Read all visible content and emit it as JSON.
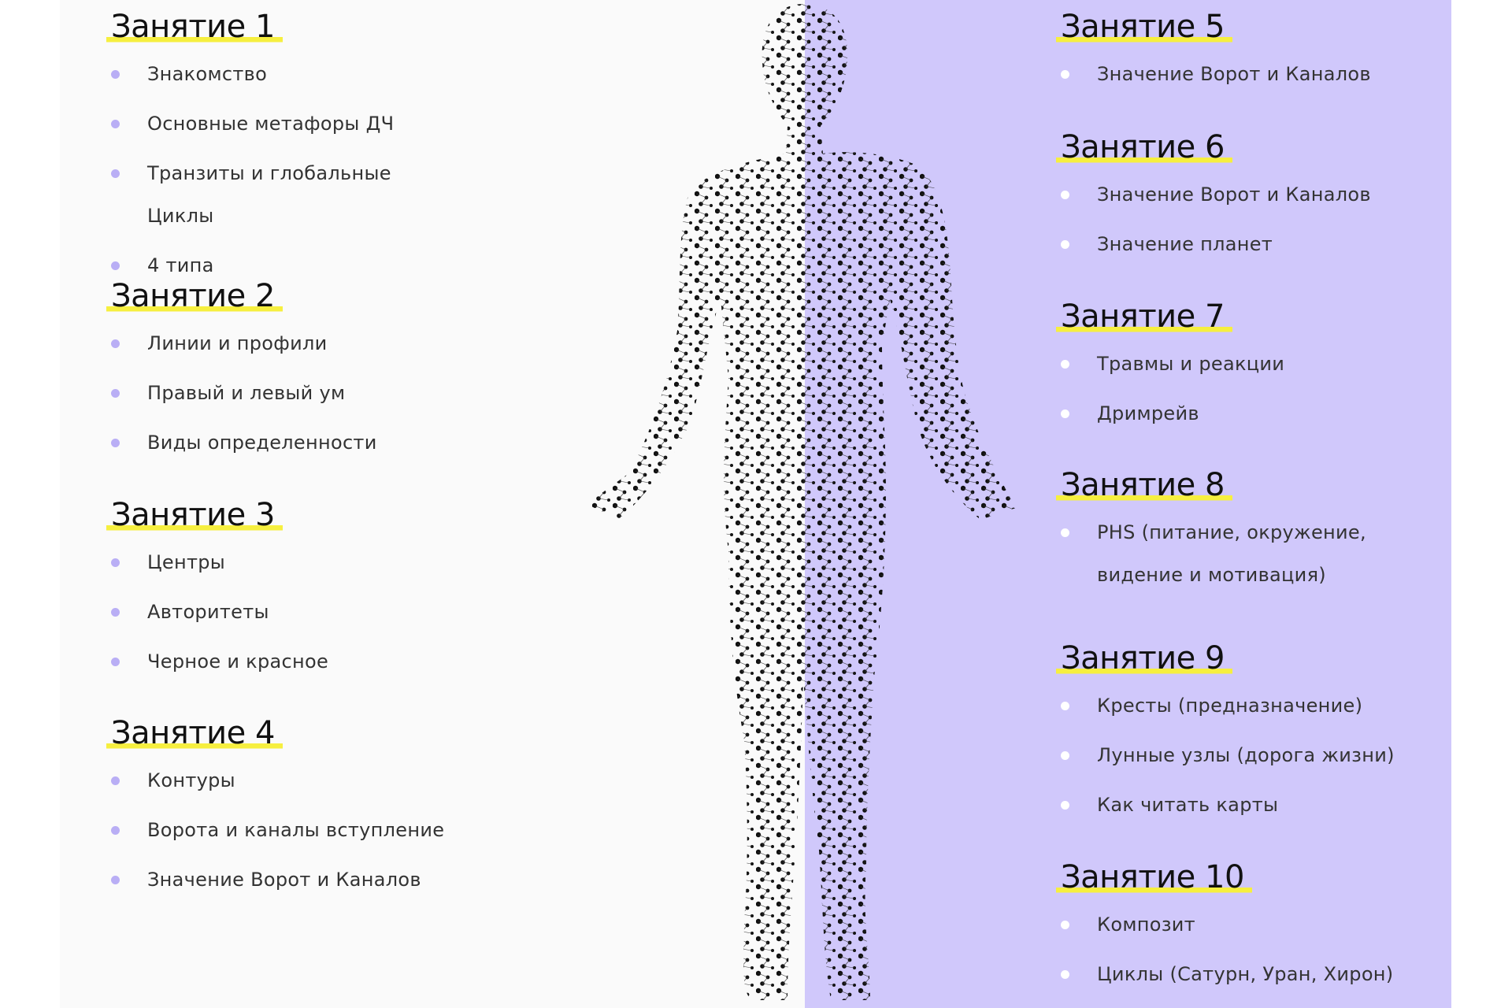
{
  "lessons_left": [
    {
      "title": "Занятие 1",
      "items": [
        "Знакомство",
        "Основные метафоры ДЧ",
        "Транзиты и глобальные Циклы",
        "4 типа"
      ]
    },
    {
      "title": "Занятие 2",
      "items": [
        "Линии и профили",
        "Правый и левый ум",
        "Виды определенности"
      ]
    },
    {
      "title": "Занятие 3",
      "items": [
        "Центры",
        "Авторитеты",
        "Черное и красное"
      ]
    },
    {
      "title": "Занятие 4",
      "items": [
        "Контуры",
        "Ворота и каналы вступление",
        "Значение Ворот и Каналов"
      ]
    }
  ],
  "lessons_right": [
    {
      "title": "Занятие 5",
      "items": [
        "Значение Ворот и Каналов"
      ]
    },
    {
      "title": "Занятие 6",
      "items": [
        "Значение Ворот и Каналов",
        "Значение планет"
      ]
    },
    {
      "title": "Занятие 7",
      "items": [
        "Травмы и реакции",
        "Дримрейв"
      ]
    },
    {
      "title": "Занятие 8",
      "items": [
        "PHS (питание, окружение, видение и мотивация)"
      ]
    },
    {
      "title": "Занятие 9",
      "items": [
        "Кресты (предназначение)",
        "Лунные узлы (дорога жизни)",
        "Как читать карты"
      ]
    },
    {
      "title": "Занятие 10",
      "items": [
        "Композит",
        "Циклы (Сатурн, Уран, Хирон)"
      ]
    }
  ]
}
